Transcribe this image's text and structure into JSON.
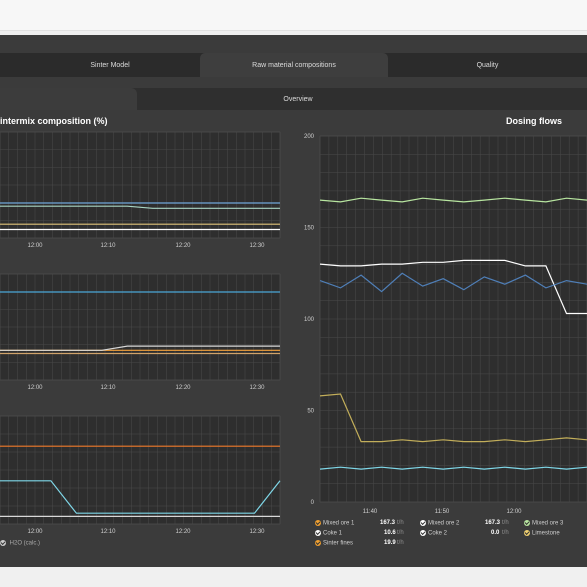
{
  "tabs": {
    "main": [
      {
        "label": "Sinter Model",
        "active": false
      },
      {
        "label": "Raw material compositions",
        "active": true
      },
      {
        "label": "Quality",
        "active": false
      }
    ],
    "sub": [
      {
        "label": "",
        "active": true
      },
      {
        "label": "Overview",
        "active": false
      }
    ]
  },
  "left_panel": {
    "title": "intermix composition (%)"
  },
  "right_panel": {
    "title": "Dosing flows"
  },
  "left_legend_partial": "H2O (calc.)",
  "chart_data": [
    {
      "type": "line",
      "title": "intermix composition (%)",
      "x_ticks": [
        "12:00",
        "12:10",
        "12:20",
        "12:30"
      ],
      "series": [
        {
          "color": "#a9d5c4",
          "values": [
            0.3,
            0.3,
            0.3,
            0.3,
            0.3,
            0.3,
            0.28,
            0.28,
            0.28,
            0.28,
            0.28,
            0.28
          ]
        },
        {
          "color": "#6fa6d8",
          "values": [
            0.33,
            0.33,
            0.33,
            0.33,
            0.33,
            0.33,
            0.33,
            0.33,
            0.33,
            0.33,
            0.33,
            0.33
          ]
        },
        {
          "color": "#e0c37a",
          "values": [
            0.13,
            0.13,
            0.13,
            0.13,
            0.13,
            0.13,
            0.13,
            0.13,
            0.13,
            0.13,
            0.13,
            0.13
          ]
        },
        {
          "color": "#ffffff",
          "values": [
            0.08,
            0.08,
            0.08,
            0.08,
            0.08,
            0.08,
            0.08,
            0.08,
            0.08,
            0.08,
            0.08,
            0.08
          ]
        }
      ]
    },
    {
      "type": "line",
      "x_ticks": [
        "12:00",
        "12:10",
        "12:20",
        "12:30"
      ],
      "series": [
        {
          "color": "#4aa6d6",
          "values": [
            0.83,
            0.83,
            0.83,
            0.83,
            0.83,
            0.83,
            0.83,
            0.83,
            0.83,
            0.83,
            0.83,
            0.83
          ]
        },
        {
          "color": "#f4a23c",
          "values": [
            0.28,
            0.28,
            0.28,
            0.28,
            0.28,
            0.28,
            0.28,
            0.28,
            0.28,
            0.28,
            0.28,
            0.28
          ]
        },
        {
          "color": "#d8d8d8",
          "values": [
            0.28,
            0.28,
            0.28,
            0.28,
            0.28,
            0.32,
            0.32,
            0.32,
            0.32,
            0.32,
            0.32,
            0.32
          ]
        },
        {
          "color": "#d0a36a",
          "values": [
            0.25,
            0.25,
            0.25,
            0.25,
            0.25,
            0.25,
            0.25,
            0.25,
            0.25,
            0.25,
            0.25,
            0.25
          ]
        }
      ]
    },
    {
      "type": "line",
      "x_ticks": [
        "12:00",
        "12:10",
        "12:20",
        "12:30"
      ],
      "series": [
        {
          "name": "H2O (calc.)",
          "color": "#7fd7e8",
          "values": [
            0.4,
            0.4,
            0.4,
            0.1,
            0.1,
            0.1,
            0.1,
            0.1,
            0.1,
            0.1,
            0.1,
            0.4
          ]
        },
        {
          "color": "#f07a2a",
          "values": [
            0.72,
            0.72,
            0.72,
            0.72,
            0.72,
            0.72,
            0.72,
            0.72,
            0.72,
            0.72,
            0.72,
            0.72
          ]
        },
        {
          "color": "#d8d8d8",
          "values": [
            0.07,
            0.07,
            0.07,
            0.07,
            0.07,
            0.07,
            0.07,
            0.07,
            0.07,
            0.07,
            0.07,
            0.07
          ]
        }
      ]
    },
    {
      "type": "line",
      "title": "Dosing flows",
      "x_ticks": [
        "11:40",
        "11:50",
        "12:00"
      ],
      "ylim": [
        0,
        200
      ],
      "y_ticks": [
        0,
        50,
        100,
        150,
        200
      ],
      "series": [
        {
          "name": "Mixed ore 1",
          "color": "#f0a030",
          "values": [
            167.3
          ]
        },
        {
          "name": "Mixed ore 2",
          "color": "#ffffff",
          "values": [
            167.3
          ]
        },
        {
          "name": "Mixed ore 3",
          "color": "#b8e6a0",
          "values": [
            168,
            167,
            168,
            167,
            168,
            167,
            168,
            167,
            168,
            167,
            168,
            167
          ]
        },
        {
          "name": "Coke 1",
          "color": "#ffffff",
          "values": [
            10.6
          ]
        },
        {
          "name": "Coke 2",
          "color": "#ffffff",
          "values": [
            0.0
          ]
        },
        {
          "name": "Limestone",
          "color": "#f0d070",
          "values": [
            20,
            20,
            20,
            20,
            20,
            20,
            20,
            20,
            20,
            20,
            20,
            20
          ]
        },
        {
          "name": "Sinter fines",
          "color": "#f0a030",
          "values": [
            19.9
          ]
        }
      ],
      "lines": [
        {
          "color": "#b8e6a0",
          "values": [
            165,
            164,
            166,
            165,
            164,
            166,
            165,
            164,
            165,
            166,
            165,
            164,
            166,
            165
          ]
        },
        {
          "color": "#ffffff",
          "values": [
            130,
            129,
            129,
            130,
            130,
            131,
            131,
            132,
            132,
            132,
            129,
            129,
            103,
            103
          ]
        },
        {
          "color": "#4f7fb8",
          "values": [
            121,
            117,
            124,
            115,
            125,
            118,
            122,
            116,
            123,
            119,
            124,
            117,
            121,
            119
          ]
        },
        {
          "color": "#c2ae5a",
          "values": [
            58,
            59,
            33,
            33,
            34,
            33,
            34,
            33,
            33,
            34,
            33,
            34,
            35,
            34
          ]
        },
        {
          "color": "#7fd7e8",
          "values": [
            18,
            19,
            18,
            19,
            18,
            19,
            18,
            19,
            18,
            19,
            18,
            19,
            18,
            19
          ]
        }
      ]
    }
  ],
  "legend": [
    {
      "label": "Mixed ore 1",
      "value": "167.3",
      "unit": "t/h",
      "color": "#f0a030"
    },
    {
      "label": "Mixed ore 2",
      "value": "167.3",
      "unit": "t/h",
      "color": "#ffffff"
    },
    {
      "label": "Mixed ore 3",
      "value": "",
      "unit": "",
      "color": "#b8e6a0"
    },
    {
      "label": "Coke 1",
      "value": "10.6",
      "unit": "t/h",
      "color": "#ffffff"
    },
    {
      "label": "Coke 2",
      "value": "0.0",
      "unit": "t/h",
      "color": "#ffffff"
    },
    {
      "label": "Limestone",
      "value": "",
      "unit": "",
      "color": "#f0d070"
    },
    {
      "label": "Sinter fines",
      "value": "19.9",
      "unit": "t/h",
      "color": "#f0a030"
    }
  ]
}
